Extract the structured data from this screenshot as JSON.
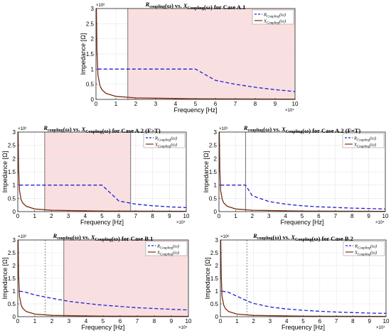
{
  "figure": {
    "xlabel": "Frequency [Hz]",
    "ylabel": "Impedance [Ω]",
    "xmult": "×10⁴",
    "ymult": "×10⁶",
    "yticks": [
      "0",
      "0.5",
      "1",
      "1.5",
      "2",
      "2.5",
      "3"
    ],
    "xticks": [
      "0",
      "1",
      "2",
      "3",
      "4",
      "5",
      "6",
      "7",
      "8",
      "9",
      "10"
    ],
    "legend": [
      "R_Coupling(ω)",
      "X_Coupling(ω)"
    ],
    "colors": {
      "R": "#1f1fd6",
      "X": "#7a2e10",
      "shade": "#f9d9dc",
      "vline_solid": "#555555",
      "vline_dash": "#666666",
      "grid": "#e6e6e6"
    }
  },
  "chart_data": [
    {
      "id": "A1",
      "type": "line",
      "title": "R_coupling(ω) vs. X_Coupling(ω) for Case A.1",
      "xlabel": "Frequency [Hz]",
      "ylabel": "Impedance [Ω]",
      "x_multiplier": 10000,
      "y_multiplier": 1000000,
      "xlim": [
        0,
        10
      ],
      "ylim": [
        0,
        3
      ],
      "series": [
        {
          "name": "R_Coupling(ω)",
          "style": "dashed",
          "x": [
            0.1,
            1,
            2,
            3,
            4,
            5,
            6,
            7,
            8,
            9,
            10
          ],
          "y": [
            1,
            1,
            1,
            1,
            1,
            1,
            0.63,
            0.5,
            0.4,
            0.32,
            0.26
          ]
        },
        {
          "name": "X_Coupling(ω)",
          "style": "solid",
          "x": [
            0.02,
            0.05,
            0.1,
            0.2,
            0.3,
            0.5,
            1,
            2,
            5,
            10
          ],
          "y": [
            3,
            1.6,
            0.8,
            0.45,
            0.32,
            0.2,
            0.1,
            0.05,
            0.02,
            0.01
          ]
        }
      ],
      "shaded": [
        [
          1.6,
          10
        ]
      ],
      "vlines": [
        {
          "x": 1.6,
          "style": "solid"
        }
      ]
    },
    {
      "id": "A2a",
      "type": "line",
      "title": "R_coupling(ω) vs. X_Coupling(ω) for Case A.2 (F>T)",
      "xlabel": "Frequency [Hz]",
      "ylabel": "Impedance [Ω]",
      "x_multiplier": 10000,
      "y_multiplier": 1000000,
      "xlim": [
        0,
        10
      ],
      "ylim": [
        0,
        3
      ],
      "series": [
        {
          "name": "R_Coupling(ω)",
          "style": "dashed",
          "x": [
            0.1,
            1,
            2,
            3,
            4,
            5,
            6,
            7,
            8,
            9,
            10
          ],
          "y": [
            1,
            1,
            1,
            1,
            1,
            1,
            0.4,
            0.28,
            0.22,
            0.18,
            0.15
          ]
        },
        {
          "name": "X_Coupling(ω)",
          "style": "solid",
          "x": [
            0.02,
            0.05,
            0.1,
            0.2,
            0.3,
            0.5,
            1,
            2,
            5,
            10
          ],
          "y": [
            3,
            1.6,
            0.8,
            0.45,
            0.32,
            0.2,
            0.1,
            0.05,
            0.02,
            0.01
          ]
        }
      ],
      "shaded": [
        [
          1.6,
          6.7
        ]
      ],
      "vlines": [
        {
          "x": 1.6,
          "style": "solid"
        },
        {
          "x": 6.7,
          "style": "solid"
        }
      ]
    },
    {
      "id": "A2b",
      "type": "line",
      "title": "R_coupling(ω) vs. X_Coupling(ω) for Case A.2 (F=T)",
      "xlabel": "Frequency [Hz]",
      "ylabel": "Impedance [Ω]",
      "x_multiplier": 10000,
      "y_multiplier": 1000000,
      "xlim": [
        0,
        10
      ],
      "ylim": [
        0,
        3
      ],
      "series": [
        {
          "name": "R_Coupling(ω)",
          "style": "dashed",
          "x": [
            0.1,
            0.5,
            1,
            1.6,
            2,
            3,
            4,
            5,
            6,
            8,
            10
          ],
          "y": [
            1,
            1,
            1,
            1,
            0.6,
            0.38,
            0.28,
            0.22,
            0.18,
            0.13,
            0.1
          ]
        },
        {
          "name": "X_Coupling(ω)",
          "style": "solid",
          "x": [
            0.02,
            0.05,
            0.1,
            0.2,
            0.3,
            0.5,
            1,
            2,
            5,
            10
          ],
          "y": [
            3,
            1.6,
            0.8,
            0.45,
            0.32,
            0.2,
            0.1,
            0.05,
            0.02,
            0.01
          ]
        }
      ],
      "shaded": [],
      "vlines": [
        {
          "x": 1.6,
          "style": "solid"
        }
      ]
    },
    {
      "id": "B1",
      "type": "line",
      "title": "R_coupling(ω) vs. X_Coupling(ω) for Case B.1",
      "xlabel": "Frequency [Hz]",
      "ylabel": "Impedance [Ω]",
      "x_multiplier": 10000,
      "y_multiplier": 1000000,
      "xlim": [
        0,
        10
      ],
      "ylim": [
        0,
        3
      ],
      "series": [
        {
          "name": "R_Coupling(ω)",
          "style": "dashed",
          "x": [
            0.1,
            0.5,
            1,
            2,
            3,
            4,
            5,
            6,
            7,
            8,
            9,
            10
          ],
          "y": [
            1,
            0.95,
            0.85,
            0.72,
            0.6,
            0.52,
            0.45,
            0.4,
            0.35,
            0.32,
            0.29,
            0.26
          ]
        },
        {
          "name": "X_Coupling(ω)",
          "style": "solid",
          "x": [
            0.02,
            0.05,
            0.1,
            0.2,
            0.3,
            0.5,
            1,
            2,
            5,
            10
          ],
          "y": [
            3,
            1.6,
            0.8,
            0.45,
            0.32,
            0.2,
            0.1,
            0.05,
            0.02,
            0.01
          ]
        }
      ],
      "shaded": [
        [
          2.7,
          10
        ]
      ],
      "vlines": [
        {
          "x": 1.6,
          "style": "dashed"
        },
        {
          "x": 2.7,
          "style": "solid"
        }
      ]
    },
    {
      "id": "B2",
      "type": "line",
      "title": "R_coupling(ω) vs. X_Coupling(ω) for Case B.2",
      "xlabel": "Frequency [Hz]",
      "ylabel": "Impedance [Ω]",
      "x_multiplier": 10000,
      "y_multiplier": 1000000,
      "xlim": [
        0,
        10
      ],
      "ylim": [
        0,
        3
      ],
      "series": [
        {
          "name": "R_Coupling(ω)",
          "style": "dashed",
          "x": [
            0.1,
            0.5,
            1,
            1.6,
            2,
            3,
            4,
            5,
            6,
            7,
            8,
            9,
            10
          ],
          "y": [
            1,
            0.95,
            0.8,
            0.62,
            0.52,
            0.38,
            0.3,
            0.25,
            0.21,
            0.18,
            0.16,
            0.14,
            0.13
          ]
        },
        {
          "name": "X_Coupling(ω)",
          "style": "solid",
          "x": [
            0.02,
            0.05,
            0.1,
            0.2,
            0.3,
            0.5,
            1,
            2,
            5,
            10
          ],
          "y": [
            3,
            1.6,
            0.8,
            0.45,
            0.32,
            0.2,
            0.1,
            0.05,
            0.02,
            0.01
          ]
        }
      ],
      "shaded": [],
      "vlines": [
        {
          "x": 1.6,
          "style": "dashed"
        }
      ]
    }
  ]
}
